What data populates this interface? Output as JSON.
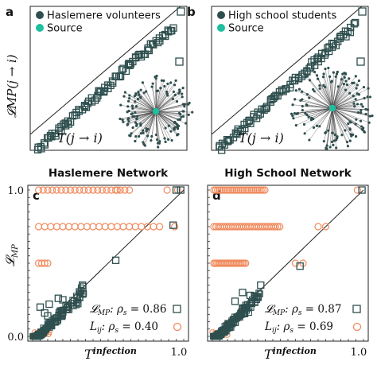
{
  "colors": {
    "dark": "#2f4f4f",
    "source": "#1fbfa0",
    "orange": "#f08a5d",
    "line": "#222222"
  },
  "chart_data": [
    {
      "id": "a",
      "type": "scatter",
      "label": "a",
      "legend": [
        {
          "name": "Haslemere volunteers",
          "marker": "dark-dot"
        },
        {
          "name": "Source",
          "marker": "teal-dot"
        }
      ],
      "ylabel": "𝓛MP(j → i)",
      "xlabel": "T(j → i)",
      "marker": "open-square",
      "inset": "network-star"
    },
    {
      "id": "b",
      "type": "scatter",
      "label": "b",
      "legend": [
        {
          "name": "High school students",
          "marker": "dark-dot"
        },
        {
          "name": "Source",
          "marker": "teal-dot"
        }
      ],
      "ylabel": "",
      "xlabel": "T(j → i)",
      "marker": "open-square",
      "inset": "network-star"
    },
    {
      "id": "c",
      "type": "scatter",
      "label": "c",
      "title": "Haslemere Network",
      "ylabel": "𝓛MP",
      "xlabel": "Tinfection",
      "xlim": [
        0,
        1
      ],
      "ylim": [
        0,
        1
      ],
      "xticks": [
        "1.0"
      ],
      "yticks": [
        "0.0",
        "1.0"
      ],
      "series": [
        {
          "name": "𝓛MP: ρs = 0.86",
          "marker": "open-square",
          "color": "#2f4f4f"
        },
        {
          "name": "Lij: ρs = 0.40",
          "marker": "open-circle",
          "color": "#f08a5d"
        }
      ],
      "correlations": [
        {
          "symbol": "𝓛",
          "sub": "MP",
          "text": ": ρ",
          "rsub": "s",
          "value": "= 0.86"
        },
        {
          "symbol": "L",
          "sub": "ij",
          "text": ": ρ",
          "rsub": "s",
          "value": "= 0.40"
        }
      ],
      "orange_levels": [
        1.0,
        0.75,
        0.5
      ],
      "orange_points": [
        [
          0.04,
          1.0
        ],
        [
          0.07,
          1.0
        ],
        [
          0.1,
          1.0
        ],
        [
          0.13,
          1.0
        ],
        [
          0.16,
          1.0
        ],
        [
          0.19,
          1.0
        ],
        [
          0.22,
          1.0
        ],
        [
          0.25,
          1.0
        ],
        [
          0.28,
          1.0
        ],
        [
          0.31,
          1.0
        ],
        [
          0.34,
          1.0
        ],
        [
          0.37,
          1.0
        ],
        [
          0.4,
          1.0
        ],
        [
          0.43,
          1.0
        ],
        [
          0.46,
          1.0
        ],
        [
          0.49,
          1.0
        ],
        [
          0.52,
          1.0
        ],
        [
          0.55,
          1.0
        ],
        [
          0.58,
          1.0
        ],
        [
          0.61,
          1.0
        ],
        [
          0.64,
          1.0
        ],
        [
          0.56,
          1.0
        ],
        [
          0.89,
          1.0
        ],
        [
          0.96,
          1.0
        ],
        [
          0.04,
          0.75
        ],
        [
          0.08,
          0.75
        ],
        [
          0.12,
          0.75
        ],
        [
          0.16,
          0.75
        ],
        [
          0.2,
          0.75
        ],
        [
          0.24,
          0.75
        ],
        [
          0.28,
          0.75
        ],
        [
          0.32,
          0.75
        ],
        [
          0.36,
          0.75
        ],
        [
          0.4,
          0.75
        ],
        [
          0.44,
          0.75
        ],
        [
          0.48,
          0.75
        ],
        [
          0.52,
          0.75
        ],
        [
          0.56,
          0.75
        ],
        [
          0.6,
          0.75
        ],
        [
          0.64,
          0.75
        ],
        [
          0.68,
          0.75
        ],
        [
          0.72,
          0.75
        ],
        [
          0.76,
          0.75
        ],
        [
          0.8,
          0.75
        ],
        [
          0.84,
          0.75
        ],
        [
          0.94,
          0.75
        ],
        [
          0.04,
          0.5
        ],
        [
          0.06,
          0.5
        ],
        [
          0.08,
          0.5
        ],
        [
          0.1,
          0.5
        ]
      ],
      "square_points": [
        [
          0.98,
          1.0
        ],
        [
          0.95,
          1.0
        ],
        [
          0.93,
          0.76
        ],
        [
          0.55,
          0.52
        ],
        [
          0.33,
          0.35
        ],
        [
          0.05,
          0.2
        ],
        [
          0.11,
          0.22
        ],
        [
          0.17,
          0.26
        ],
        [
          0.2,
          0.25
        ],
        [
          0.08,
          0.16
        ],
        [
          0.1,
          0.14
        ]
      ],
      "diag": true
    },
    {
      "id": "d",
      "type": "scatter",
      "label": "d",
      "title": "High School Network",
      "ylabel": "",
      "xlabel": "Tinfection",
      "xlim": [
        0,
        1
      ],
      "ylim": [
        0,
        1
      ],
      "xticks": [
        "1.0"
      ],
      "yticks": [],
      "series": [
        {
          "name": "𝓛MP: ρs = 0.87",
          "marker": "open-square",
          "color": "#2f4f4f"
        },
        {
          "name": "Lij: ρs = 0.69",
          "marker": "open-circle",
          "color": "#f08a5d"
        }
      ],
      "correlations": [
        {
          "symbol": "𝓛",
          "sub": "MP",
          "text": ": ρ",
          "rsub": "s",
          "value": "= 0.87"
        },
        {
          "symbol": "L",
          "sub": "ij",
          "text": ": ρ",
          "rsub": "s",
          "value": "= 0.69"
        }
      ],
      "orange_levels": [
        1.0,
        0.75,
        0.5
      ],
      "orange_points": [
        [
          0.96,
          1.0
        ],
        [
          0.7,
          0.75
        ],
        [
          0.75,
          0.75
        ],
        [
          0.55,
          0.5
        ],
        [
          0.6,
          0.5
        ]
      ],
      "square_points": [
        [
          0.99,
          1.0
        ],
        [
          0.58,
          0.48
        ],
        [
          0.32,
          0.35
        ],
        [
          0.2,
          0.3
        ],
        [
          0.15,
          0.24
        ],
        [
          0.25,
          0.28
        ]
      ],
      "diag": true
    }
  ]
}
